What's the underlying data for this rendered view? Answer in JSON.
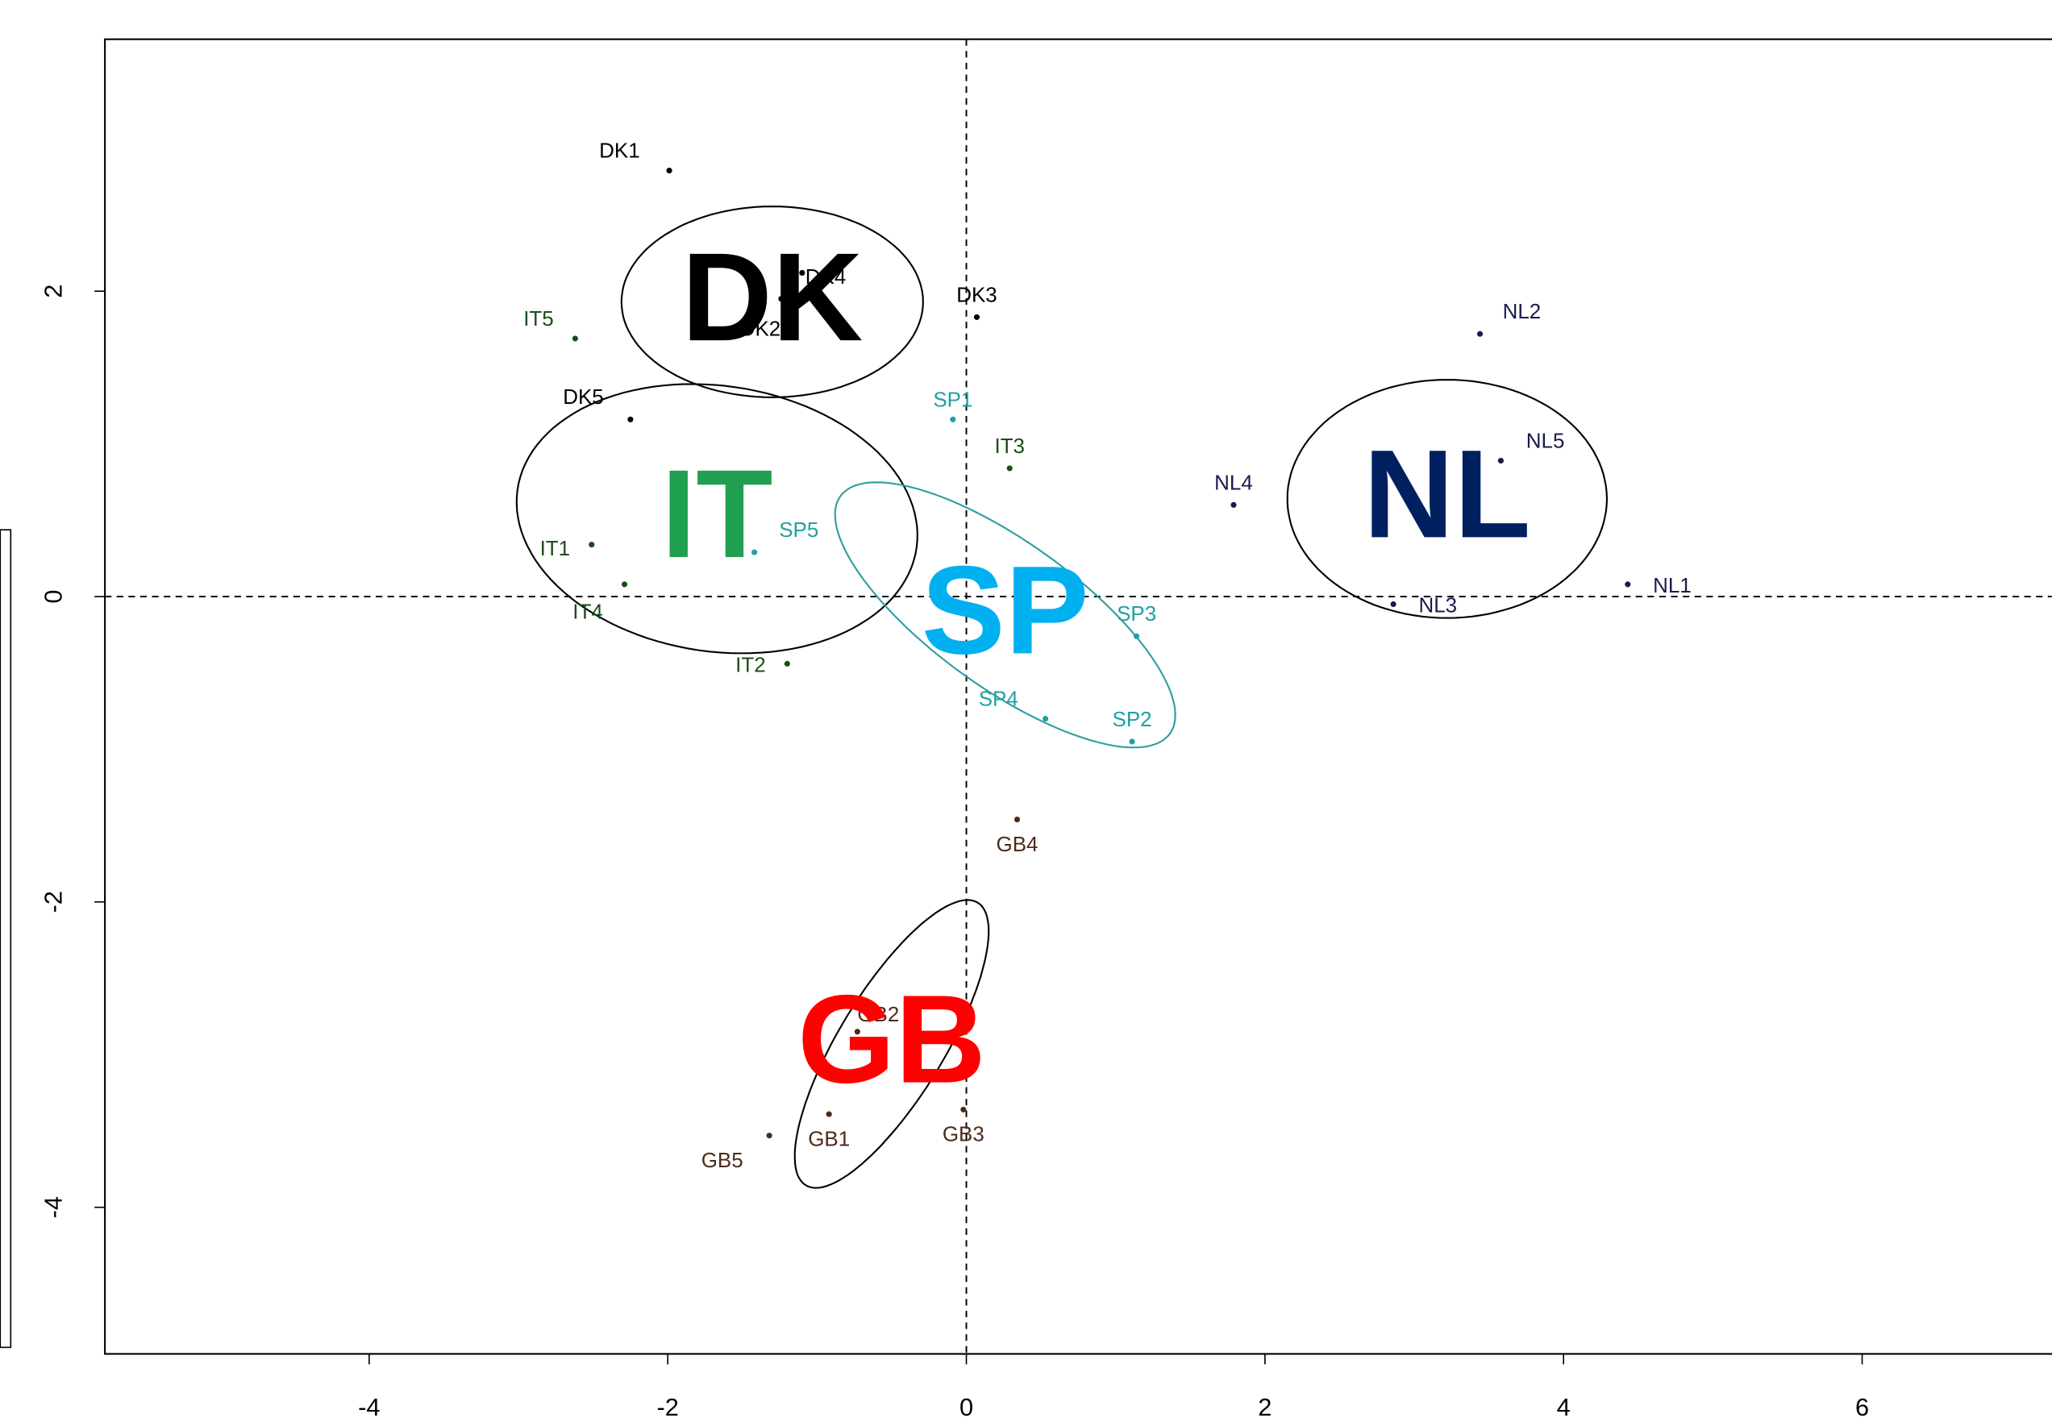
{
  "chart_data": {
    "type": "scatter",
    "xlim": [
      -5.77,
      7.27
    ],
    "ylim": [
      -4.96,
      3.65
    ],
    "xticks": [
      -4,
      -2,
      0,
      2,
      4,
      6
    ],
    "yticks": [
      -4,
      -2,
      0,
      2
    ],
    "hline": 0,
    "vline": 0,
    "series": [
      {
        "name": "DK",
        "color": "#000000",
        "label_color": "#000000",
        "ellipse_color": "#000000",
        "labels": [
          "DK1",
          "DK2",
          "DK3",
          "DK4",
          "DK5"
        ],
        "x": [
          -1.99,
          -1.24,
          0.07,
          -1.1,
          -2.25
        ],
        "y": [
          2.79,
          1.95,
          1.83,
          2.12,
          1.16
        ],
        "ellipse": {
          "cx": -1.3,
          "cy": 1.93,
          "rx": 1.01,
          "ry": 0.625,
          "angle": 0
        }
      },
      {
        "name": "IT",
        "color": "#1a4d1a",
        "label_color": "#1fa050",
        "ellipse_color": "#000000",
        "labels": [
          "IT1",
          "IT2",
          "IT3",
          "IT4",
          "IT5"
        ],
        "x": [
          -2.51,
          -1.2,
          0.29,
          -2.29,
          -2.62
        ],
        "y": [
          0.34,
          -0.44,
          0.84,
          0.08,
          1.69
        ],
        "ellipse": {
          "cx": -1.67,
          "cy": 0.51,
          "rx": 1.35,
          "ry": 0.87,
          "angle": -8
        }
      },
      {
        "name": "SP",
        "color": "#20a0a0",
        "label_color": "#00b0f0",
        "ellipse_color": "#2e9e9e",
        "labels": [
          "SP1",
          "SP2",
          "SP3",
          "SP4",
          "SP5"
        ],
        "x": [
          -0.09,
          1.11,
          1.14,
          0.53,
          -1.42
        ],
        "y": [
          1.16,
          -0.95,
          -0.26,
          -0.8,
          0.29
        ],
        "ellipse": {
          "cx": 0.26,
          "cy": -0.12,
          "rx": 1.35,
          "ry": 0.48,
          "angle": -35
        }
      },
      {
        "name": "NL",
        "color": "#1a1a4d",
        "label_color": "#002060",
        "ellipse_color": "#000000",
        "labels": [
          "NL1",
          "NL2",
          "NL3",
          "NL4",
          "NL5"
        ],
        "x": [
          4.43,
          3.44,
          2.86,
          1.79,
          3.58
        ],
        "y": [
          0.08,
          1.72,
          -0.05,
          0.6,
          0.89
        ],
        "ellipse": {
          "cx": 3.22,
          "cy": 0.64,
          "rx": 1.07,
          "ry": 0.78,
          "angle": 0
        }
      },
      {
        "name": "GB",
        "color": "#4d2a1a",
        "label_color": "#ff0000",
        "ellipse_color": "#000000",
        "labels": [
          "GB1",
          "GB2",
          "GB3",
          "GB4",
          "GB5"
        ],
        "x": [
          -0.92,
          -0.73,
          -0.02,
          0.34,
          -1.32
        ],
        "y": [
          -3.39,
          -2.85,
          -3.36,
          -1.46,
          -3.53
        ],
        "ellipse": {
          "cx": -0.5,
          "cy": -2.93,
          "rx": 1.09,
          "ry": 0.35,
          "angle": 58
        }
      }
    ]
  }
}
